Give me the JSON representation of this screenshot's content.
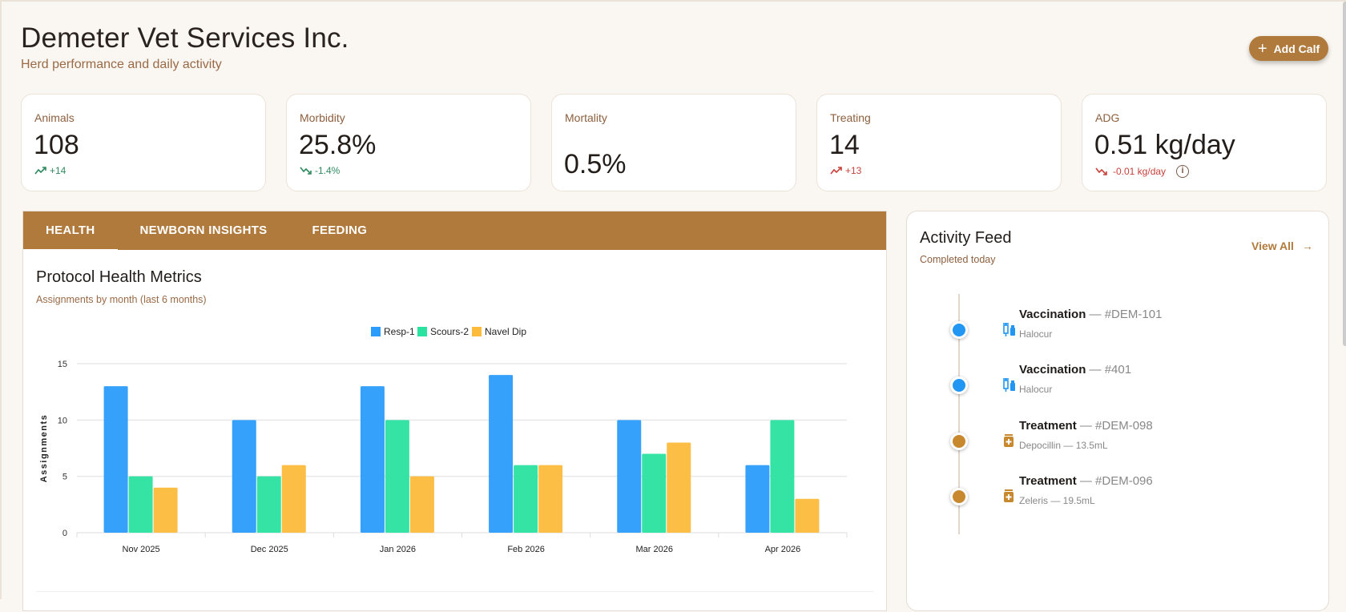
{
  "header": {
    "title": "Demeter Vet Services Inc.",
    "subtitle": "Herd performance and daily activity",
    "add_button": "Add Calf",
    "add_icon": "plus-icon"
  },
  "stats": [
    {
      "label": "Animals",
      "value": "108",
      "delta": "+14",
      "trend": "up",
      "color": "#2e8a5e"
    },
    {
      "label": "Morbidity",
      "value": "25.8%",
      "delta": "-1.4%",
      "trend": "down",
      "color": "#2e8a5e"
    },
    {
      "label": "Mortality",
      "value": "0.5%"
    },
    {
      "label": "Treating",
      "value": "14",
      "delta": "+13",
      "trend": "up",
      "color": "#c8413a"
    },
    {
      "label": "ADG",
      "value": "0.51 kg/day",
      "delta": "-0.01 kg/day",
      "trend": "down",
      "color": "#c8413a",
      "info_icon": "info-icon"
    }
  ],
  "tabs": [
    {
      "label": "HEALTH",
      "active": true
    },
    {
      "label": "NEWBORN INSIGHTS"
    },
    {
      "label": "FEEDING"
    }
  ],
  "chart_panel": {
    "title": "Protocol Health Metrics",
    "subtitle": "Assignments by month (last 6 months)"
  },
  "chart_data": {
    "type": "bar",
    "categories": [
      "Nov 2025",
      "Dec 2025",
      "Jan 2026",
      "Feb 2026",
      "Mar 2026",
      "Apr 2026"
    ],
    "series": [
      {
        "name": "Resp-1",
        "color": "#2b9cfb",
        "values": [
          13,
          10,
          13,
          14,
          10,
          6
        ]
      },
      {
        "name": "Scours-2",
        "color": "#2ae3a0",
        "values": [
          5,
          5,
          10,
          6,
          7,
          10
        ]
      },
      {
        "name": "Navel Dip",
        "color": "#fdbb3b",
        "values": [
          4,
          6,
          5,
          6,
          8,
          3
        ]
      }
    ],
    "ylabel": "Assignments",
    "ylim": [
      0,
      15
    ],
    "yticks": [
      0,
      5,
      10,
      15
    ],
    "grid": true,
    "legend": "top"
  },
  "activity": {
    "title": "Activity Feed",
    "subtitle": "Completed today",
    "view_all": "View All",
    "items": [
      {
        "type": "Vaccination",
        "id": "— #DEM-101",
        "detail": "Halocur",
        "color": "#2196f3",
        "icon": "syringe-vial-icon"
      },
      {
        "type": "Vaccination",
        "id": "— #401",
        "detail": "Halocur",
        "color": "#2196f3",
        "icon": "syringe-vial-icon"
      },
      {
        "type": "Treatment",
        "id": "— #DEM-098",
        "detail": "Depocillin — 13.5mL",
        "color": "#c8892e",
        "icon": "medicine-bottle-icon"
      },
      {
        "type": "Treatment",
        "id": "— #DEM-096",
        "detail": "Zeleris — 19.5mL",
        "color": "#c8892e",
        "icon": "medicine-bottle-icon"
      }
    ]
  }
}
